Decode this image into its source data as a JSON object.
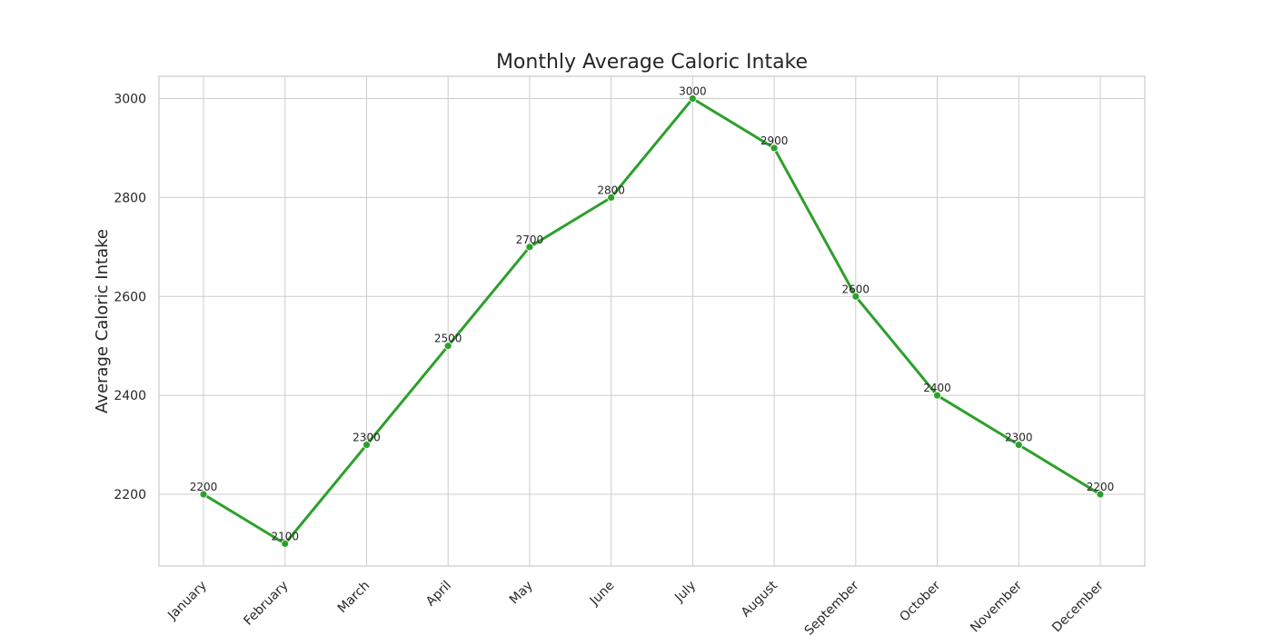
{
  "chart_data": {
    "type": "line",
    "title": "Monthly Average Caloric Intake",
    "xlabel": "",
    "ylabel": "Average Caloric Intake",
    "categories": [
      "January",
      "February",
      "March",
      "April",
      "May",
      "June",
      "July",
      "August",
      "September",
      "October",
      "November",
      "December"
    ],
    "series": [
      {
        "values": [
          2200,
          2100,
          2300,
          2500,
          2700,
          2800,
          3000,
          2900,
          2600,
          2400,
          2300,
          2200
        ],
        "color": "#2ca02c"
      }
    ],
    "yticks": [
      2200,
      2400,
      2600,
      2800,
      3000
    ],
    "ylim": [
      2055,
      3045
    ],
    "grid": true,
    "legend": "none",
    "data_labels": true
  }
}
